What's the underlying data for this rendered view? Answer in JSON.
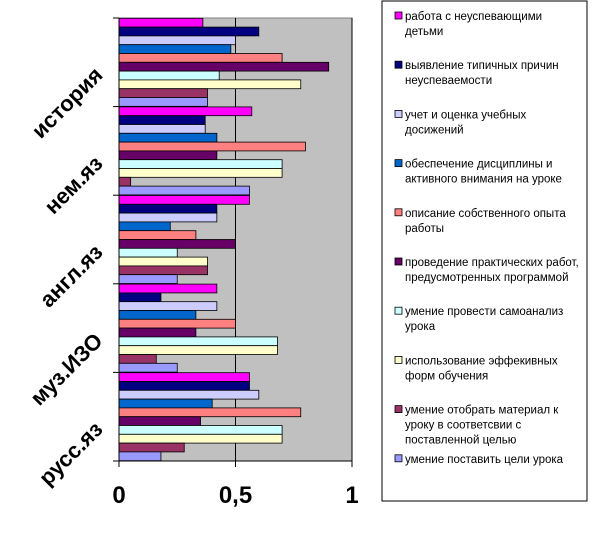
{
  "chart_data": {
    "type": "bar",
    "orientation": "horizontal",
    "categories": [
      "история",
      "нем.яз",
      "англ.яз",
      "муз.ИЗО",
      "русс.яз"
    ],
    "xlim": [
      0,
      1
    ],
    "x_ticks": [
      "0",
      "0,5",
      "1"
    ],
    "grid": "vertical",
    "legend_position": "right",
    "plot_background": "#c0c0c0",
    "series": [
      {
        "name": "работа с неуспевающими детьми",
        "color": "#ff00ff",
        "values": [
          0.36,
          0.57,
          0.56,
          0.42,
          0.56
        ]
      },
      {
        "name": "выявление типичных причин неуспеваемости",
        "color": "#000080",
        "values": [
          0.6,
          0.37,
          0.42,
          0.18,
          0.56
        ]
      },
      {
        "name": "учет и оценка учебных досижений",
        "color": "#ccccff",
        "values": [
          0.5,
          0.37,
          0.42,
          0.42,
          0.6
        ]
      },
      {
        "name": "обеспечение дисциплины и активного внимания на уроке",
        "color": "#0066cc",
        "values": [
          0.48,
          0.42,
          0.22,
          0.33,
          0.4
        ]
      },
      {
        "name": "описание собственного опыта работы",
        "color": "#ff8080",
        "values": [
          0.7,
          0.8,
          0.33,
          0.5,
          0.78
        ]
      },
      {
        "name": "проведение практических работ, предусмотренных программой",
        "color": "#660066",
        "values": [
          0.9,
          0.42,
          0.5,
          0.33,
          0.35
        ]
      },
      {
        "name": "умение провести самоанализ урока",
        "color": "#ccffff",
        "values": [
          0.43,
          0.7,
          0.25,
          0.68,
          0.7
        ]
      },
      {
        "name": "использование эффекивных форм обучения",
        "color": "#ffffcc",
        "values": [
          0.78,
          0.7,
          0.38,
          0.68,
          0.7
        ]
      },
      {
        "name": "умение отобрать материал к уроку в соответсвии с поставленной целью",
        "color": "#993366",
        "values": [
          0.38,
          0.05,
          0.38,
          0.16,
          0.28
        ]
      },
      {
        "name": "умение поставить цели урока",
        "color": "#9999ff",
        "values": [
          0.38,
          0.56,
          0.25,
          0.25,
          0.18
        ]
      }
    ]
  }
}
